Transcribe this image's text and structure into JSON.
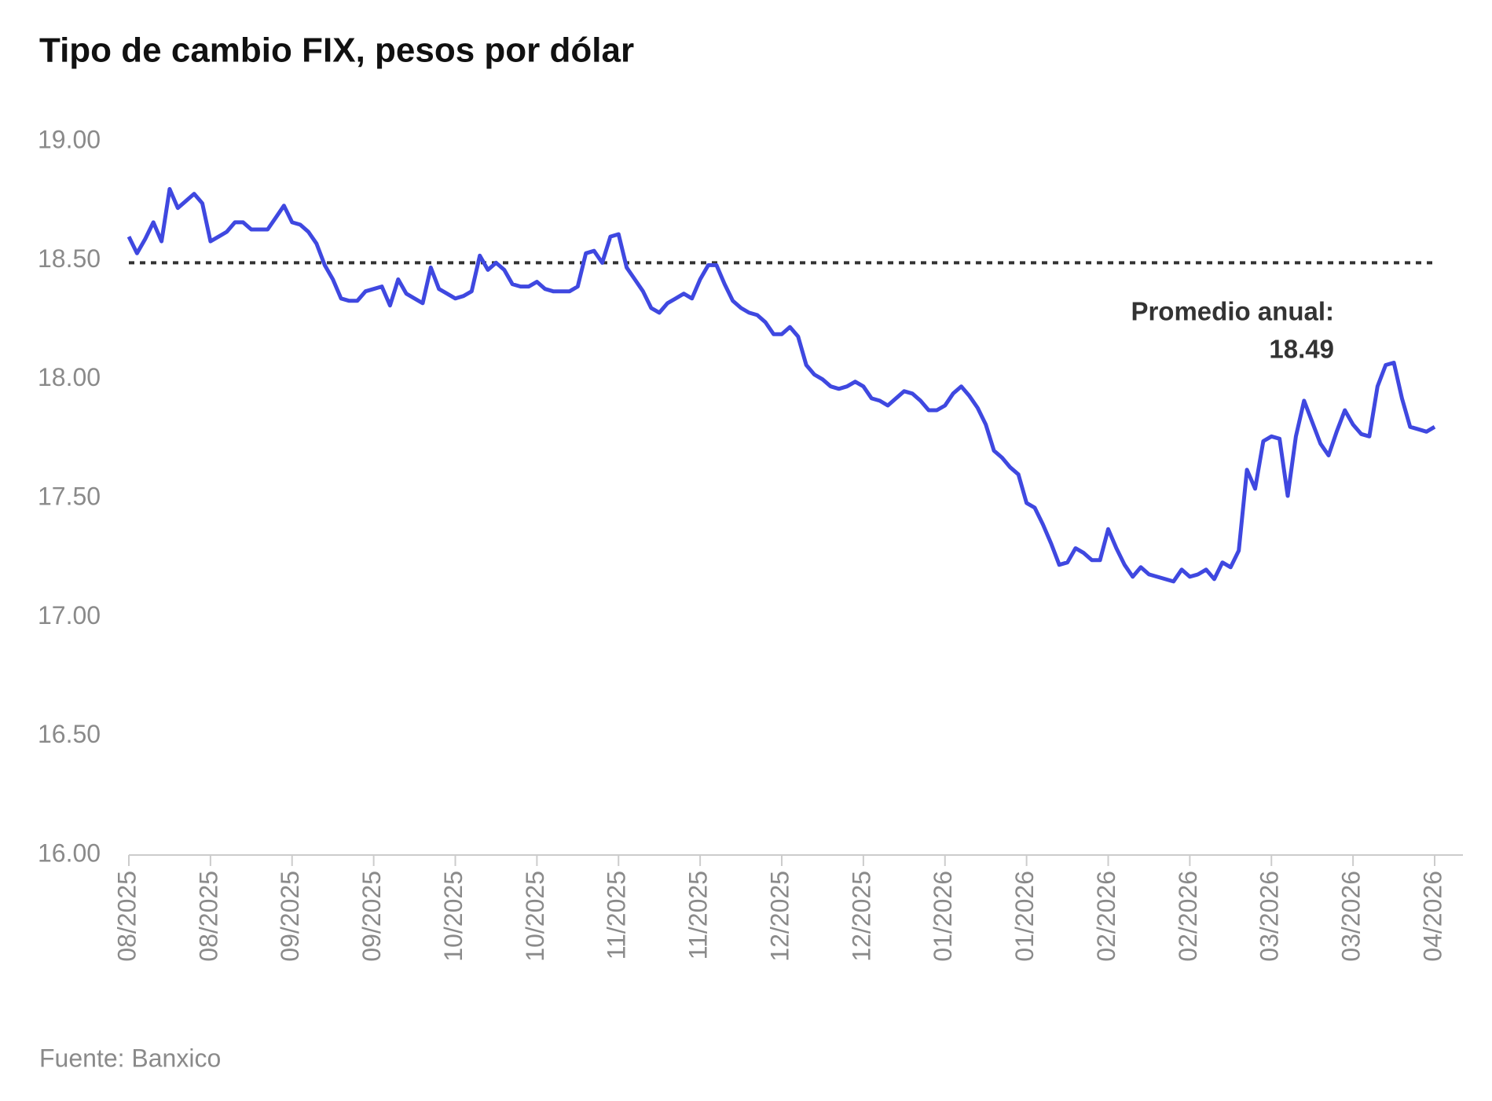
{
  "chart_data": {
    "type": "line",
    "title": "Tipo de cambio FIX, pesos por dólar",
    "source": "Fuente: Banxico",
    "categories": [
      "08/2025",
      null,
      null,
      null,
      null,
      null,
      null,
      null,
      null,
      null,
      "08/2025",
      null,
      null,
      null,
      null,
      null,
      null,
      null,
      null,
      null,
      "09/2025",
      null,
      null,
      null,
      null,
      null,
      null,
      null,
      null,
      null,
      "09/2025",
      null,
      null,
      null,
      null,
      null,
      null,
      null,
      null,
      null,
      "10/2025",
      null,
      null,
      null,
      null,
      null,
      null,
      null,
      null,
      null,
      "10/2025",
      null,
      null,
      null,
      null,
      null,
      null,
      null,
      null,
      null,
      "11/2025",
      null,
      null,
      null,
      null,
      null,
      null,
      null,
      null,
      null,
      "11/2025",
      null,
      null,
      null,
      null,
      null,
      null,
      null,
      null,
      null,
      "12/2025",
      null,
      null,
      null,
      null,
      null,
      null,
      null,
      null,
      null,
      "12/2025",
      null,
      null,
      null,
      null,
      null,
      null,
      null,
      null,
      null,
      "01/2026",
      null,
      null,
      null,
      null,
      null,
      null,
      null,
      null,
      null,
      "01/2026",
      null,
      null,
      null,
      null,
      null,
      null,
      null,
      null,
      null,
      "02/2026",
      null,
      null,
      null,
      null,
      null,
      null,
      null,
      null,
      null,
      "02/2026",
      null,
      null,
      null,
      null,
      null,
      null,
      null,
      null,
      null,
      "03/2026",
      null,
      null,
      null,
      null,
      null,
      null,
      null,
      null,
      null,
      "03/2026",
      null,
      null,
      null,
      null,
      null,
      null,
      null,
      null,
      null,
      "04/2026"
    ],
    "series": [
      {
        "name": "FIX",
        "color": "#3f48e0",
        "values": [
          18.6,
          18.53,
          18.59,
          18.66,
          18.58,
          18.8,
          18.72,
          18.75,
          18.78,
          18.74,
          18.58,
          18.6,
          18.62,
          18.66,
          18.66,
          18.63,
          18.63,
          18.63,
          18.68,
          18.73,
          18.66,
          18.65,
          18.62,
          18.57,
          18.48,
          18.42,
          18.34,
          18.33,
          18.33,
          18.37,
          18.38,
          18.39,
          18.31,
          18.42,
          18.36,
          18.34,
          18.32,
          18.47,
          18.38,
          18.36,
          18.34,
          18.35,
          18.37,
          18.52,
          18.46,
          18.49,
          18.46,
          18.4,
          18.39,
          18.39,
          18.41,
          18.38,
          18.37,
          18.37,
          18.37,
          18.39,
          18.53,
          18.54,
          18.49,
          18.6,
          18.61,
          18.47,
          18.42,
          18.37,
          18.3,
          18.28,
          18.32,
          18.34,
          18.36,
          18.34,
          18.42,
          18.48,
          18.48,
          18.4,
          18.33,
          18.3,
          18.28,
          18.27,
          18.24,
          18.19,
          18.19,
          18.22,
          18.18,
          18.06,
          18.02,
          18.0,
          17.97,
          17.96,
          17.97,
          17.99,
          17.97,
          17.92,
          17.91,
          17.89,
          17.92,
          17.95,
          17.94,
          17.91,
          17.87,
          17.87,
          17.89,
          17.94,
          17.97,
          17.93,
          17.88,
          17.81,
          17.7,
          17.67,
          17.63,
          17.6,
          17.48,
          17.46,
          17.39,
          17.31,
          17.22,
          17.23,
          17.29,
          17.27,
          17.24,
          17.24,
          17.37,
          17.29,
          17.22,
          17.17,
          17.21,
          17.18,
          17.17,
          17.16,
          17.15,
          17.2,
          17.17,
          17.18,
          17.2,
          17.16,
          17.23,
          17.21,
          17.28,
          17.62,
          17.54,
          17.74,
          17.76,
          17.75,
          17.51,
          17.76,
          17.91,
          17.82,
          17.73,
          17.68,
          17.78,
          17.87,
          17.81,
          17.77,
          17.76,
          17.97,
          18.06,
          18.07,
          17.92,
          17.8,
          17.79,
          17.78,
          17.8
        ]
      }
    ],
    "average": {
      "label": "Promedio anual:",
      "value": 18.49
    },
    "ylim": [
      16,
      19
    ],
    "yticks": [
      {
        "value": 16,
        "label": "16.00"
      },
      {
        "value": 16.5,
        "label": "16.50"
      },
      {
        "value": 17,
        "label": "17.00"
      },
      {
        "value": 17.5,
        "label": "17.50"
      },
      {
        "value": 18,
        "label": "18.00"
      },
      {
        "value": 18.5,
        "label": "18.50"
      },
      {
        "value": 19,
        "label": "19.00"
      }
    ],
    "grid": false
  }
}
